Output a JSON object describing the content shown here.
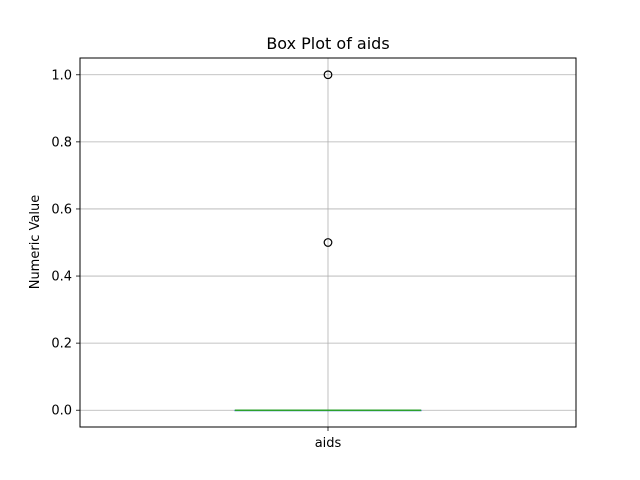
{
  "chart_data": {
    "type": "box",
    "title": "Box Plot of aids",
    "xlabel": "",
    "ylabel": "Numeric Value",
    "categories": [
      "aids"
    ],
    "ylim": [
      -0.05,
      1.05
    ],
    "yticks": [
      "0.0",
      "0.2",
      "0.4",
      "0.6",
      "0.8",
      "1.0"
    ],
    "grid": true,
    "boxes": [
      {
        "name": "aids",
        "q1": 0.0,
        "median": 0.0,
        "q3": 0.0,
        "whisker_low": 0.0,
        "whisker_high": 0.0,
        "outliers": [
          0.5,
          1.0
        ]
      }
    ],
    "colors": {
      "median": "#2ca02c",
      "box": "#1f77b4",
      "grid": "#b0b0b0",
      "outlier_edge": "#000000"
    }
  }
}
